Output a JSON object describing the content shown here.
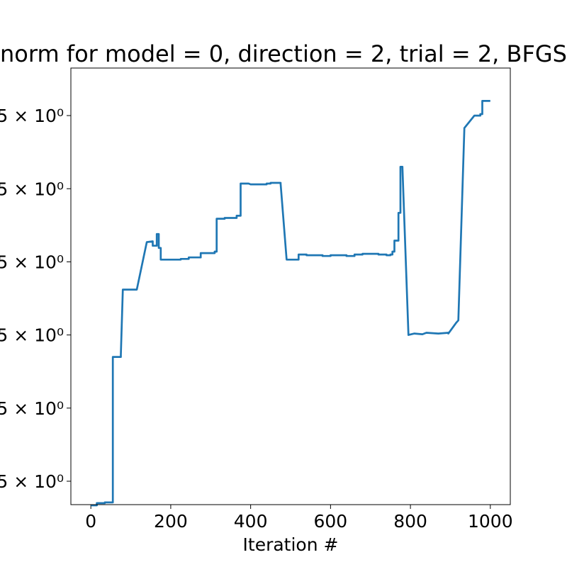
{
  "chart_data": {
    "type": "line",
    "title": "norm for model = 0, direction = 2, trial = 2, BFGS",
    "xlabel": "Iteration #",
    "ylabel": "",
    "xlim": [
      -50,
      1050
    ],
    "ylim": [
      -0.32,
      5.65
    ],
    "x_ticks": [
      0,
      200,
      400,
      600,
      800,
      1000
    ],
    "y_ticks": [
      {
        "value": 0,
        "label": "5 × 10⁰"
      },
      {
        "value": 1,
        "label": "5 × 10⁰"
      },
      {
        "value": 2,
        "label": "5 × 10⁰"
      },
      {
        "value": 3,
        "label": "5 × 10⁰"
      },
      {
        "value": 4,
        "label": "5 × 10⁰"
      },
      {
        "value": 5,
        "label": "5 × 10⁰"
      }
    ],
    "series": [
      {
        "color": "#1f77b4",
        "x": [
          0,
          15,
          15,
          35,
          35,
          55,
          55,
          75,
          75,
          80,
          80,
          115,
          115,
          140,
          140,
          155,
          155,
          165,
          165,
          170,
          170,
          175,
          175,
          200,
          200,
          225,
          225,
          245,
          245,
          275,
          275,
          280,
          280,
          310,
          310,
          315,
          315,
          335,
          335,
          365,
          365,
          375,
          375,
          395,
          395,
          400,
          400,
          420,
          420,
          440,
          440,
          450,
          450,
          475,
          475,
          490,
          490,
          520,
          520,
          540,
          540,
          580,
          580,
          600,
          600,
          640,
          640,
          660,
          660,
          680,
          680,
          720,
          720,
          740,
          740,
          750,
          750,
          755,
          755,
          760,
          760,
          770,
          770,
          775,
          775,
          780,
          780,
          795,
          795,
          810,
          810,
          830,
          830,
          840,
          840,
          870,
          870,
          895,
          895,
          915,
          915,
          920,
          920,
          935,
          935,
          960,
          960,
          975,
          975,
          980,
          980,
          1000
        ],
        "y": [
          -0.33,
          -0.33,
          -0.3,
          -0.3,
          -0.29,
          -0.29,
          1.7,
          1.7,
          1.73,
          2.62,
          2.62,
          2.62,
          2.62,
          3.27,
          3.27,
          3.28,
          3.22,
          3.22,
          3.38,
          3.38,
          3.19,
          3.19,
          3.03,
          3.03,
          3.03,
          3.03,
          3.04,
          3.04,
          3.06,
          3.06,
          3.12,
          3.12,
          3.12,
          3.12,
          3.14,
          3.14,
          3.59,
          3.59,
          3.6,
          3.6,
          3.63,
          3.63,
          4.07,
          4.07,
          4.07,
          4.06,
          4.06,
          4.06,
          4.06,
          4.06,
          4.07,
          4.07,
          4.08,
          4.08,
          4.07,
          3.03,
          3.03,
          3.03,
          3.1,
          3.1,
          3.09,
          3.09,
          3.08,
          3.08,
          3.09,
          3.09,
          3.08,
          3.08,
          3.1,
          3.1,
          3.11,
          3.11,
          3.1,
          3.1,
          3.09,
          3.09,
          3.1,
          3.1,
          3.14,
          3.14,
          3.29,
          3.29,
          3.67,
          3.67,
          4.3,
          4.3,
          4.29,
          2.0,
          2.0,
          2.02,
          2.02,
          2.01,
          2.01,
          2.03,
          2.03,
          2.02,
          2.02,
          2.03,
          2.02,
          2.17,
          2.17,
          2.2,
          2.2,
          4.83,
          4.83,
          5.0,
          5.0,
          5.0,
          5.02,
          5.02,
          5.2,
          5.2
        ]
      }
    ]
  }
}
